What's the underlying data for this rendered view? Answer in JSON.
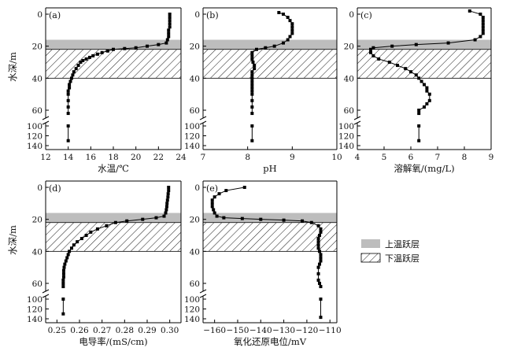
{
  "legend": [
    {
      "label": "上温跃层",
      "pattern": "gray",
      "color": "#bdbdbd"
    },
    {
      "label": "下温跃层",
      "pattern": "hatch",
      "color": "#000000"
    }
  ],
  "chart_data": [
    {
      "type": "line",
      "panel": "(a)",
      "xlabel": "水温/℃",
      "ylabel": "水深/m",
      "xlim": [
        12,
        24
      ],
      "xticks": [
        "12",
        "14",
        "16",
        "18",
        "20",
        "22",
        "24"
      ],
      "yticks_upper": [
        "0",
        "20",
        "40",
        "60"
      ],
      "yticks_lower": [
        "100",
        "120",
        "140"
      ],
      "upper_thermocline": [
        16,
        22
      ],
      "lower_thermocline": [
        22,
        40
      ],
      "series": [
        {
          "x": [
            23.0,
            23.0,
            23.0,
            23.0,
            23.0,
            22.9,
            22.9,
            22.9,
            22.8,
            22.7,
            22.0,
            21.0,
            20.0,
            19.0,
            18.0,
            17.5,
            17.0,
            16.6,
            16.2,
            15.9,
            15.6,
            15.3,
            15.1,
            14.9,
            14.7,
            14.5,
            14.4,
            14.3,
            14.2,
            14.1,
            14.1,
            14.0,
            14.0,
            14.0,
            14.0,
            14.0
          ],
          "y": [
            0,
            2,
            4,
            6,
            8,
            10,
            12,
            14,
            16,
            18,
            19,
            20,
            21,
            21.5,
            22,
            23,
            24,
            25,
            26,
            27,
            28,
            29,
            30,
            32,
            34,
            36,
            38,
            40,
            42,
            44,
            46,
            48,
            50,
            54,
            58,
            62
          ]
        }
      ],
      "deep": {
        "x": [
          14.0,
          14.0
        ],
        "y": [
          100,
          130
        ]
      }
    },
    {
      "type": "line",
      "panel": "(b)",
      "xlabel": "pH",
      "xlim": [
        7,
        10
      ],
      "xticks": [
        "7",
        "8",
        "9",
        "10"
      ],
      "yticks_upper": [
        "0",
        "20",
        "40",
        "60"
      ],
      "yticks_lower": [
        "100",
        "120",
        "140"
      ],
      "upper_thermocline": [
        16,
        22
      ],
      "lower_thermocline": [
        22,
        40
      ],
      "series": [
        {
          "x": [
            8.7,
            8.8,
            8.9,
            8.95,
            9.0,
            9.0,
            9.0,
            9.0,
            8.95,
            8.9,
            8.8,
            8.6,
            8.4,
            8.2,
            8.1,
            8.1,
            8.1,
            8.12,
            8.15,
            8.15,
            8.1,
            8.1,
            8.1,
            8.1,
            8.1,
            8.1,
            8.1,
            8.1,
            8.1,
            8.1,
            8.1
          ],
          "y": [
            -1,
            0,
            2,
            4,
            6,
            8,
            10,
            12,
            14,
            16,
            18,
            20,
            21,
            22,
            24,
            26,
            28,
            30,
            32,
            34,
            36,
            38,
            40,
            42,
            44,
            46,
            48,
            50,
            54,
            58,
            62
          ]
        }
      ],
      "deep": {
        "x": [
          8.1,
          8.1
        ],
        "y": [
          100,
          130
        ]
      }
    },
    {
      "type": "line",
      "panel": "(c)",
      "xlabel": "溶解氧/(mg/L)",
      "xlim": [
        4,
        9
      ],
      "xticks": [
        "4",
        "5",
        "6",
        "7",
        "8",
        "9"
      ],
      "yticks_upper": [
        "0",
        "20",
        "40",
        "60"
      ],
      "yticks_lower": [
        "100",
        "120",
        "140"
      ],
      "upper_thermocline": [
        16,
        22
      ],
      "lower_thermocline": [
        22,
        40
      ],
      "series": [
        {
          "x": [
            8.2,
            8.6,
            8.7,
            8.7,
            8.7,
            8.7,
            8.7,
            8.7,
            8.6,
            8.4,
            7.4,
            6.2,
            5.3,
            4.6,
            4.5,
            4.5,
            4.6,
            4.8,
            5.2,
            5.5,
            5.8,
            6.0,
            6.2,
            6.3,
            6.4,
            6.5,
            6.6,
            6.6,
            6.7,
            6.7,
            6.6,
            6.5,
            6.3,
            6.3
          ],
          "y": [
            -2,
            0,
            2,
            4,
            6,
            8,
            10,
            12,
            14,
            16,
            18,
            19,
            20,
            21,
            22,
            24,
            26,
            28,
            30,
            32,
            34,
            36,
            38,
            40,
            42,
            44,
            46,
            48,
            50,
            54,
            56,
            58,
            60,
            62
          ]
        }
      ],
      "deep": {
        "x": [
          6.3,
          6.3
        ],
        "y": [
          100,
          130
        ]
      }
    },
    {
      "type": "line",
      "panel": "(d)",
      "xlabel": "电导率/(mS/cm)",
      "ylabel": "水深/m",
      "xlim": [
        0.245,
        0.305
      ],
      "xticks": [
        "0.25",
        "0.26",
        "0.27",
        "0.28",
        "0.29",
        "0.30"
      ],
      "yticks_upper": [
        "0",
        "20",
        "40",
        "60"
      ],
      "yticks_lower": [
        "100",
        "120",
        "140"
      ],
      "upper_thermocline": [
        16,
        22
      ],
      "lower_thermocline": [
        22,
        40
      ],
      "series": [
        {
          "x": [
            0.2995,
            0.2995,
            0.2993,
            0.2992,
            0.299,
            0.2988,
            0.2987,
            0.2985,
            0.2982,
            0.2975,
            0.294,
            0.288,
            0.281,
            0.276,
            0.272,
            0.268,
            0.265,
            0.263,
            0.261,
            0.259,
            0.2575,
            0.2565,
            0.2555,
            0.255,
            0.2545,
            0.254,
            0.2535,
            0.2532,
            0.253,
            0.253,
            0.253,
            0.2528,
            0.2528,
            0.2528
          ],
          "y": [
            0,
            2,
            4,
            6,
            8,
            10,
            12,
            14,
            16,
            18,
            19,
            20,
            21,
            22,
            24,
            26,
            28,
            30,
            32,
            34,
            36,
            38,
            40,
            42,
            44,
            46,
            48,
            50,
            52,
            54,
            56,
            58,
            60,
            62
          ]
        }
      ],
      "deep": {
        "x": [
          0.2528,
          0.2528
        ],
        "y": [
          100,
          130
        ]
      }
    },
    {
      "type": "line",
      "panel": "(e)",
      "xlabel": "氧化还原电位/mV",
      "xlim": [
        -165,
        -107
      ],
      "xticks": [
        "−160",
        "−150",
        "−140",
        "−130",
        "−120",
        "−110"
      ],
      "yticks_upper": [
        "0",
        "20",
        "40",
        "60"
      ],
      "yticks_lower": [
        "100",
        "120",
        "140"
      ],
      "upper_thermocline": [
        16,
        22
      ],
      "lower_thermocline": [
        22,
        40
      ],
      "series": [
        {
          "x": [
            -147,
            -155,
            -158,
            -160,
            -161,
            -161,
            -161,
            -160.5,
            -160,
            -159,
            -156,
            -148,
            -140,
            -130,
            -122,
            -118,
            -115,
            -114,
            -114,
            -114.5,
            -115,
            -115,
            -115,
            -115,
            -114.5,
            -114,
            -114,
            -114,
            -114.5,
            -115,
            -115,
            -115,
            -114.5,
            -114
          ],
          "y": [
            0,
            2,
            4,
            6,
            8,
            10,
            12,
            14,
            16,
            18,
            19,
            19.5,
            20,
            20.5,
            21,
            22,
            24,
            26,
            28,
            30,
            32,
            34,
            36,
            38,
            40,
            42,
            44,
            46,
            48,
            50,
            54,
            58,
            60,
            62
          ]
        }
      ],
      "deep": {
        "x": [
          -114,
          -114
        ],
        "y": [
          100,
          137
        ]
      }
    }
  ]
}
